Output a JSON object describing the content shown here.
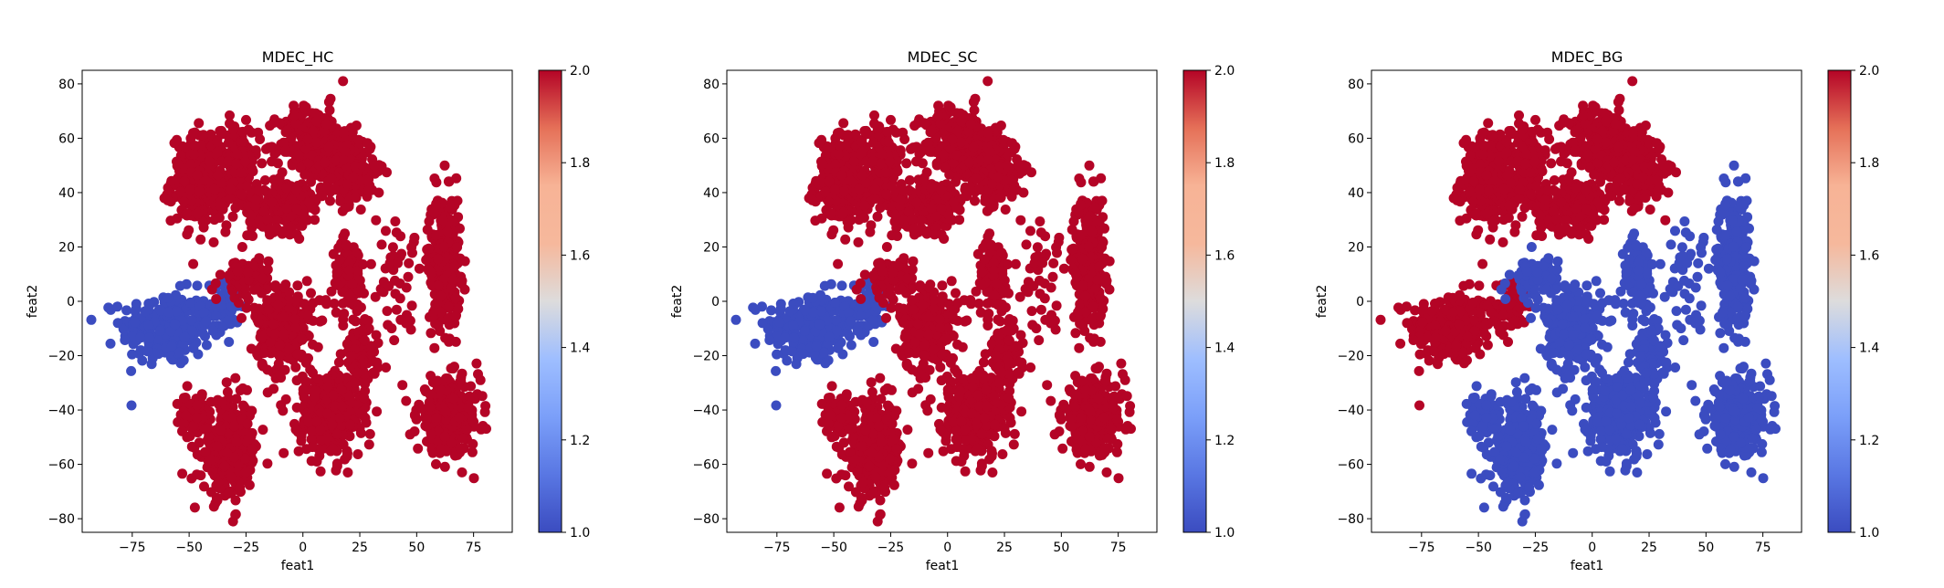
{
  "chart_data": [
    {
      "type": "scatter",
      "title": "MDEC_HC",
      "xlabel": "feat1",
      "ylabel": "feat2",
      "xlim": [
        -97,
        92
      ],
      "ylim": [
        -85,
        85
      ],
      "xticks": [
        -75,
        -50,
        -25,
        0,
        25,
        50,
        75
      ],
      "yticks": [
        -80,
        -60,
        -40,
        -20,
        0,
        20,
        40,
        60,
        80
      ],
      "colorbar": {
        "min": 1.0,
        "max": 2.0,
        "ticks": [
          "1.0",
          "1.2",
          "1.4",
          "1.6",
          "1.8",
          "2.0"
        ],
        "cmap": "coolwarm"
      },
      "colors": {
        "low": "#3b4cc0",
        "high": "#b40426"
      },
      "clusters": [
        {
          "cx": -60,
          "cy": -10,
          "rx": 22,
          "ry": 15,
          "value": 1,
          "count": 260
        },
        {
          "cx": -35,
          "cy": -2,
          "rx": 9,
          "ry": 10,
          "value": 1,
          "count": 80
        },
        {
          "cx": -45,
          "cy": 45,
          "rx": 14,
          "ry": 18,
          "value": 2,
          "count": 300
        },
        {
          "cx": -28,
          "cy": 50,
          "rx": 9,
          "ry": 17,
          "value": 2,
          "count": 140
        },
        {
          "cx": 5,
          "cy": 58,
          "rx": 17,
          "ry": 15,
          "value": 2,
          "count": 320
        },
        {
          "cx": -8,
          "cy": 35,
          "rx": 18,
          "ry": 10,
          "value": 2,
          "count": 220
        },
        {
          "cx": 20,
          "cy": 48,
          "rx": 13,
          "ry": 14,
          "value": 2,
          "count": 220
        },
        {
          "cx": 62,
          "cy": 15,
          "rx": 8,
          "ry": 27,
          "value": 2,
          "count": 280
        },
        {
          "cx": -8,
          "cy": -10,
          "rx": 14,
          "ry": 20,
          "value": 2,
          "count": 240
        },
        {
          "cx": 20,
          "cy": 10,
          "rx": 8,
          "ry": 14,
          "value": 2,
          "count": 110
        },
        {
          "cx": 12,
          "cy": -42,
          "rx": 15,
          "ry": 18,
          "value": 2,
          "count": 320
        },
        {
          "cx": 25,
          "cy": -20,
          "rx": 8,
          "ry": 14,
          "value": 2,
          "count": 110
        },
        {
          "cx": 64,
          "cy": -42,
          "rx": 15,
          "ry": 15,
          "value": 2,
          "count": 330
        },
        {
          "cx": -32,
          "cy": -55,
          "rx": 14,
          "ry": 20,
          "value": 2,
          "count": 300
        },
        {
          "cx": -48,
          "cy": -42,
          "rx": 7,
          "ry": 8,
          "value": 2,
          "count": 60
        },
        {
          "cx": -25,
          "cy": 8,
          "rx": 12,
          "ry": 10,
          "value": 2,
          "count": 90
        },
        {
          "cx": 40,
          "cy": 10,
          "rx": 12,
          "ry": 22,
          "value": 2,
          "count": 45
        }
      ]
    },
    {
      "type": "scatter",
      "title": "MDEC_SC",
      "xlabel": "feat1",
      "ylabel": "feat2",
      "xlim": [
        -97,
        92
      ],
      "ylim": [
        -85,
        85
      ],
      "xticks": [
        -75,
        -50,
        -25,
        0,
        25,
        50,
        75
      ],
      "yticks": [
        -80,
        -60,
        -40,
        -20,
        0,
        20,
        40,
        60,
        80
      ],
      "colorbar": {
        "min": 1.0,
        "max": 2.0,
        "ticks": [
          "1.0",
          "1.2",
          "1.4",
          "1.6",
          "1.8",
          "2.0"
        ],
        "cmap": "coolwarm"
      },
      "colors": {
        "low": "#3b4cc0",
        "high": "#b40426"
      },
      "clusters": [
        {
          "cx": -60,
          "cy": -10,
          "rx": 22,
          "ry": 15,
          "value": 1,
          "count": 260
        },
        {
          "cx": -35,
          "cy": -2,
          "rx": 9,
          "ry": 10,
          "value": 1,
          "count": 80
        },
        {
          "cx": -45,
          "cy": 45,
          "rx": 14,
          "ry": 18,
          "value": 2,
          "count": 300
        },
        {
          "cx": -28,
          "cy": 50,
          "rx": 9,
          "ry": 17,
          "value": 2,
          "count": 140
        },
        {
          "cx": 5,
          "cy": 58,
          "rx": 17,
          "ry": 15,
          "value": 2,
          "count": 320
        },
        {
          "cx": -8,
          "cy": 35,
          "rx": 18,
          "ry": 10,
          "value": 2,
          "count": 220
        },
        {
          "cx": 20,
          "cy": 48,
          "rx": 13,
          "ry": 14,
          "value": 2,
          "count": 220
        },
        {
          "cx": 62,
          "cy": 15,
          "rx": 8,
          "ry": 27,
          "value": 2,
          "count": 280
        },
        {
          "cx": -8,
          "cy": -10,
          "rx": 14,
          "ry": 20,
          "value": 2,
          "count": 240
        },
        {
          "cx": 20,
          "cy": 10,
          "rx": 8,
          "ry": 14,
          "value": 2,
          "count": 110
        },
        {
          "cx": 12,
          "cy": -42,
          "rx": 15,
          "ry": 18,
          "value": 2,
          "count": 320
        },
        {
          "cx": 25,
          "cy": -20,
          "rx": 8,
          "ry": 14,
          "value": 2,
          "count": 110
        },
        {
          "cx": 64,
          "cy": -42,
          "rx": 15,
          "ry": 15,
          "value": 2,
          "count": 330
        },
        {
          "cx": -32,
          "cy": -55,
          "rx": 14,
          "ry": 20,
          "value": 2,
          "count": 300
        },
        {
          "cx": -48,
          "cy": -42,
          "rx": 7,
          "ry": 8,
          "value": 2,
          "count": 60
        },
        {
          "cx": -25,
          "cy": 8,
          "rx": 12,
          "ry": 10,
          "value": 2,
          "count": 90
        },
        {
          "cx": 40,
          "cy": 10,
          "rx": 12,
          "ry": 22,
          "value": 2,
          "count": 45
        }
      ]
    },
    {
      "type": "scatter",
      "title": "MDEC_BG",
      "xlabel": "feat1",
      "ylabel": "feat2",
      "xlim": [
        -97,
        92
      ],
      "ylim": [
        -85,
        85
      ],
      "xticks": [
        -75,
        -50,
        -25,
        0,
        25,
        50,
        75
      ],
      "yticks": [
        -80,
        -60,
        -40,
        -20,
        0,
        20,
        40,
        60,
        80
      ],
      "colorbar": {
        "min": 1.0,
        "max": 2.0,
        "ticks": [
          "1.0",
          "1.2",
          "1.4",
          "1.6",
          "1.8",
          "2.0"
        ],
        "cmap": "coolwarm"
      },
      "colors": {
        "low": "#3b4cc0",
        "high": "#b40426"
      },
      "clusters": [
        {
          "cx": -62,
          "cy": -10,
          "rx": 20,
          "ry": 15,
          "value": 2,
          "count": 260
        },
        {
          "cx": -36,
          "cy": -2,
          "rx": 9,
          "ry": 10,
          "value": 2,
          "count": 80
        },
        {
          "cx": -45,
          "cy": 45,
          "rx": 14,
          "ry": 18,
          "value": 2,
          "count": 300
        },
        {
          "cx": -28,
          "cy": 50,
          "rx": 9,
          "ry": 17,
          "value": 2,
          "count": 140
        },
        {
          "cx": 5,
          "cy": 58,
          "rx": 17,
          "ry": 15,
          "value": 2,
          "count": 320
        },
        {
          "cx": -8,
          "cy": 35,
          "rx": 18,
          "ry": 10,
          "value": 2,
          "count": 220
        },
        {
          "cx": 20,
          "cy": 48,
          "rx": 13,
          "ry": 14,
          "value": 2,
          "count": 220
        },
        {
          "cx": 62,
          "cy": 15,
          "rx": 8,
          "ry": 27,
          "value": 1,
          "count": 280
        },
        {
          "cx": -8,
          "cy": -10,
          "rx": 14,
          "ry": 20,
          "value": 1,
          "count": 240
        },
        {
          "cx": 20,
          "cy": 10,
          "rx": 8,
          "ry": 14,
          "value": 1,
          "count": 110
        },
        {
          "cx": 12,
          "cy": -42,
          "rx": 15,
          "ry": 18,
          "value": 1,
          "count": 320
        },
        {
          "cx": 25,
          "cy": -20,
          "rx": 8,
          "ry": 14,
          "value": 1,
          "count": 110
        },
        {
          "cx": 64,
          "cy": -42,
          "rx": 15,
          "ry": 15,
          "value": 1,
          "count": 330
        },
        {
          "cx": -32,
          "cy": -55,
          "rx": 14,
          "ry": 20,
          "value": 1,
          "count": 300
        },
        {
          "cx": -48,
          "cy": -42,
          "rx": 7,
          "ry": 8,
          "value": 1,
          "count": 60
        },
        {
          "cx": -25,
          "cy": 8,
          "rx": 12,
          "ry": 10,
          "value": 1,
          "count": 90
        },
        {
          "cx": 40,
          "cy": 10,
          "rx": 12,
          "ry": 22,
          "value": 1,
          "count": 45
        }
      ]
    }
  ]
}
